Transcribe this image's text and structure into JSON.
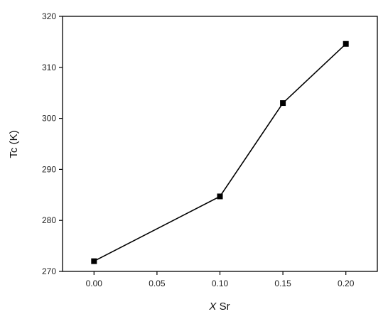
{
  "chart_data": {
    "type": "line",
    "title": "",
    "xlabel_var": "X",
    "xlabel_rest": " Sr",
    "ylabel": "Tc (K)",
    "xlim": [
      -0.025,
      0.225
    ],
    "ylim": [
      270,
      320
    ],
    "x_ticks": [
      0.0,
      0.05,
      0.1,
      0.15,
      0.2
    ],
    "x_tick_labels": [
      "0.00",
      "0.05",
      "0.10",
      "0.15",
      "0.20"
    ],
    "y_ticks": [
      270,
      280,
      290,
      300,
      310,
      320
    ],
    "y_tick_labels": [
      "270",
      "280",
      "290",
      "300",
      "310",
      "320"
    ],
    "grid": false,
    "series": [
      {
        "x": [
          0.0,
          0.1,
          0.15,
          0.2
        ],
        "y": [
          272.0,
          284.7,
          303.0,
          314.6
        ],
        "marker": "square",
        "color": "#000000"
      }
    ]
  }
}
